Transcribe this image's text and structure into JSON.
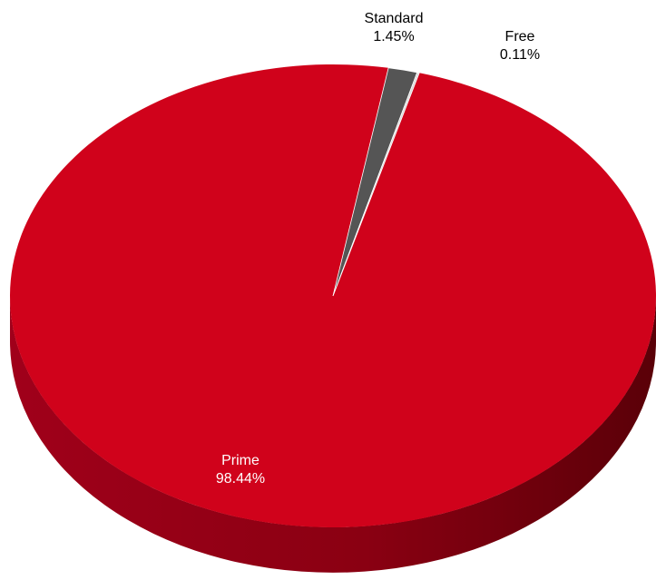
{
  "chart_data": {
    "type": "pie",
    "style": "3d",
    "categories": [
      "Prime",
      "Standard",
      "Free"
    ],
    "values": [
      98.44,
      1.45,
      0.11
    ],
    "value_labels": [
      "98.44%",
      "1.45%",
      "0.11%"
    ],
    "colors": {
      "Prime": "#d0021b",
      "Standard": "#555555",
      "Free": "#d9d9d9"
    },
    "side_colors": {
      "Prime": "#8a0010",
      "Standard": "#333333",
      "Free": "#999999"
    },
    "legend": "none",
    "label_placement": "inside-or-outside"
  }
}
